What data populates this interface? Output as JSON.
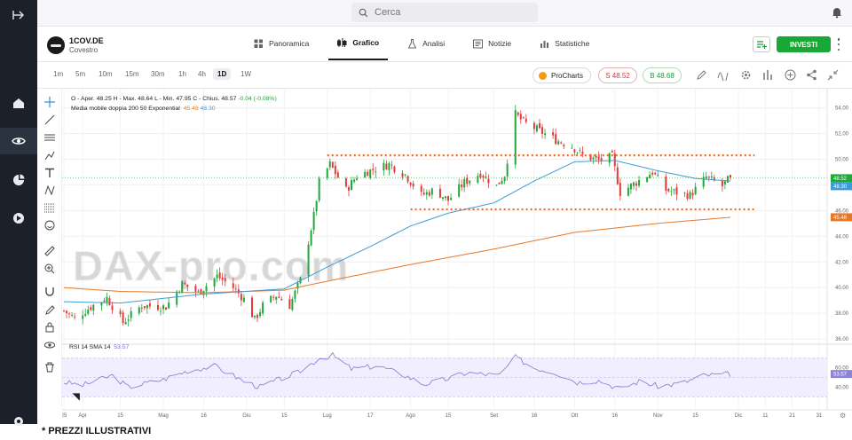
{
  "search": {
    "placeholder": "Cerca"
  },
  "instrument": {
    "symbol": "1COV.DE",
    "name": "Covestro"
  },
  "tabs": [
    {
      "label": "Panoramica"
    },
    {
      "label": "Grafico"
    },
    {
      "label": "Analisi"
    },
    {
      "label": "Notizie"
    },
    {
      "label": "Statistiche"
    }
  ],
  "invest_label": "INVESTI",
  "timeframes": [
    "1m",
    "5m",
    "10m",
    "15m",
    "30m",
    "1h",
    "4h",
    "1D",
    "1W"
  ],
  "selected_timeframe": "1D",
  "toolbar": {
    "prochart_label": "ProCharts",
    "sell_label": "S 48.52",
    "buy_label": "B 48.68"
  },
  "legend": {
    "ohlc_prefix": "O - Aper. 48.25  H - Max. 48.64  L - Min. 47.95  C - Chius. 48.57",
    "ohlc_change": "-0.04 (-0.08%)",
    "ma_label": "Media mobile doppia 200 50 Exponential",
    "ma_value_1": "45.48",
    "ma_value_2": "48.30",
    "rsi_label": "RSI 14 SMA 14",
    "rsi_value": "53.57"
  },
  "watermark": "DAX-pro.com",
  "footnote": "* PREZZI ILLUSTRATIVI",
  "colors": {
    "up": "#20a83a",
    "down": "#e23b3b",
    "ema50": "#3e9bd6",
    "ema200": "#e6782a",
    "level": "#ee6a1f",
    "rsi": "#8b84d6",
    "invest": "#17a836"
  },
  "chart_data": {
    "type": "candlestick",
    "y_axis": {
      "ticks": [
        36.0,
        38.0,
        40.0,
        42.0,
        44.0,
        46.0,
        48.0,
        50.0,
        52.0,
        54.0
      ],
      "range": [
        35.8,
        54.8
      ],
      "price_labels": [
        "48.52",
        "48.30",
        "45.48"
      ]
    },
    "x_axis": {
      "range": [
        "2024-03-25",
        "2025-01-03"
      ],
      "labels": [
        {
          "label": "25",
          "date": "2024-03-25"
        },
        {
          "label": "Apr",
          "date": "2024-04-01"
        },
        {
          "label": "15",
          "date": "2024-04-15"
        },
        {
          "label": "Mag",
          "date": "2024-05-01"
        },
        {
          "label": "16",
          "date": "2024-05-16"
        },
        {
          "label": "Giu",
          "date": "2024-06-01"
        },
        {
          "label": "15",
          "date": "2024-06-15"
        },
        {
          "label": "Lug",
          "date": "2024-07-01"
        },
        {
          "label": "17",
          "date": "2024-07-17"
        },
        {
          "label": "Ago",
          "date": "2024-08-01"
        },
        {
          "label": "15",
          "date": "2024-08-15"
        },
        {
          "label": "Set",
          "date": "2024-09-01"
        },
        {
          "label": "16",
          "date": "2024-09-16"
        },
        {
          "label": "Ott",
          "date": "2024-10-01"
        },
        {
          "label": "16",
          "date": "2024-10-16"
        },
        {
          "label": "Nov",
          "date": "2024-11-01"
        },
        {
          "label": "15",
          "date": "2024-11-15"
        },
        {
          "label": "Dic",
          "date": "2024-12-01"
        },
        {
          "label": "11",
          "date": "2024-12-11"
        },
        {
          "label": "21",
          "date": "2024-12-21"
        },
        {
          "label": "31",
          "date": "2024-12-31"
        }
      ]
    },
    "close_anchors": [
      [
        "2024-03-25",
        38.2
      ],
      [
        "2024-03-29",
        37.6
      ],
      [
        "2024-04-04",
        38.5
      ],
      [
        "2024-04-10",
        39.2
      ],
      [
        "2024-04-16",
        37.3
      ],
      [
        "2024-04-23",
        38.6
      ],
      [
        "2024-05-02",
        38.5
      ],
      [
        "2024-05-08",
        40.3
      ],
      [
        "2024-05-14",
        39.6
      ],
      [
        "2024-05-21",
        40.9
      ],
      [
        "2024-05-27",
        40.0
      ],
      [
        "2024-05-31",
        39.1
      ],
      [
        "2024-06-04",
        37.5
      ],
      [
        "2024-06-07",
        38.6
      ],
      [
        "2024-06-12",
        39.4
      ],
      [
        "2024-06-17",
        38.6
      ],
      [
        "2024-06-21",
        40.6
      ],
      [
        "2024-06-26",
        45.6
      ],
      [
        "2024-06-28",
        48.2
      ],
      [
        "2024-07-02",
        49.6
      ],
      [
        "2024-07-08",
        47.6
      ],
      [
        "2024-07-12",
        48.7
      ],
      [
        "2024-07-18",
        49.2
      ],
      [
        "2024-07-24",
        49.6
      ],
      [
        "2024-07-30",
        48.8
      ],
      [
        "2024-08-05",
        47.2
      ],
      [
        "2024-08-10",
        47.6
      ],
      [
        "2024-08-15",
        46.8
      ],
      [
        "2024-08-21",
        48.2
      ],
      [
        "2024-08-27",
        48.9
      ],
      [
        "2024-09-02",
        47.9
      ],
      [
        "2024-09-05",
        48.8
      ],
      [
        "2024-09-09",
        53.5
      ],
      [
        "2024-09-12",
        52.9
      ],
      [
        "2024-09-18",
        52.2
      ],
      [
        "2024-09-24",
        51.5
      ],
      [
        "2024-09-30",
        51.0
      ],
      [
        "2024-10-04",
        50.3
      ],
      [
        "2024-10-10",
        49.9
      ],
      [
        "2024-10-15",
        50.2
      ],
      [
        "2024-10-18",
        47.4
      ],
      [
        "2024-10-24",
        48.2
      ],
      [
        "2024-10-30",
        49.0
      ],
      [
        "2024-11-04",
        47.6
      ],
      [
        "2024-11-08",
        47.4
      ],
      [
        "2024-11-13",
        47.2
      ],
      [
        "2024-11-19",
        48.6
      ],
      [
        "2024-11-25",
        47.9
      ],
      [
        "2024-11-28",
        48.57
      ]
    ],
    "ema_50_anchors": [
      [
        "2024-03-25",
        38.9
      ],
      [
        "2024-04-15",
        38.8
      ],
      [
        "2024-05-16",
        39.5
      ],
      [
        "2024-06-15",
        39.9
      ],
      [
        "2024-07-01",
        41.6
      ],
      [
        "2024-07-17",
        43.2
      ],
      [
        "2024-08-01",
        44.8
      ],
      [
        "2024-08-15",
        45.8
      ],
      [
        "2024-09-01",
        46.6
      ],
      [
        "2024-09-16",
        48.3
      ],
      [
        "2024-10-01",
        49.8
      ],
      [
        "2024-10-16",
        49.9
      ],
      [
        "2024-11-01",
        49.1
      ],
      [
        "2024-11-15",
        48.5
      ],
      [
        "2024-11-28",
        48.3
      ]
    ],
    "ema_200_anchors": [
      [
        "2024-03-25",
        40.0
      ],
      [
        "2024-04-15",
        39.7
      ],
      [
        "2024-05-16",
        39.6
      ],
      [
        "2024-06-15",
        39.8
      ],
      [
        "2024-07-01",
        40.5
      ],
      [
        "2024-08-01",
        41.8
      ],
      [
        "2024-09-01",
        43.0
      ],
      [
        "2024-10-01",
        44.3
      ],
      [
        "2024-11-01",
        45.0
      ],
      [
        "2024-11-28",
        45.48
      ]
    ],
    "levels": [
      {
        "price": 50.3,
        "from": "2024-07-01",
        "to": "2024-12-07"
      },
      {
        "price": 46.1,
        "from": "2024-08-01",
        "to": "2024-12-07"
      }
    ],
    "rsi": {
      "range": [
        20,
        80
      ],
      "ticks": [
        40.0,
        60.0
      ],
      "band": [
        30,
        70
      ],
      "anchors": [
        [
          "2024-03-25",
          45
        ],
        [
          "2024-04-01",
          42
        ],
        [
          "2024-04-12",
          52
        ],
        [
          "2024-04-18",
          40
        ],
        [
          "2024-05-01",
          48
        ],
        [
          "2024-05-10",
          57
        ],
        [
          "2024-05-20",
          62
        ],
        [
          "2024-05-31",
          46
        ],
        [
          "2024-06-06",
          40
        ],
        [
          "2024-06-14",
          49
        ],
        [
          "2024-06-20",
          55
        ],
        [
          "2024-06-28",
          70
        ],
        [
          "2024-07-03",
          73
        ],
        [
          "2024-07-10",
          59
        ],
        [
          "2024-07-20",
          62
        ],
        [
          "2024-07-30",
          52
        ],
        [
          "2024-08-06",
          43
        ],
        [
          "2024-08-14",
          48
        ],
        [
          "2024-08-22",
          55
        ],
        [
          "2024-09-03",
          52
        ],
        [
          "2024-09-09",
          71
        ],
        [
          "2024-09-16",
          60
        ],
        [
          "2024-09-24",
          55
        ],
        [
          "2024-10-02",
          45
        ],
        [
          "2024-10-10",
          47
        ],
        [
          "2024-10-18",
          38
        ],
        [
          "2024-10-25",
          46
        ],
        [
          "2024-11-01",
          41
        ],
        [
          "2024-11-10",
          44
        ],
        [
          "2024-11-18",
          52
        ],
        [
          "2024-11-28",
          53.57
        ]
      ]
    }
  }
}
